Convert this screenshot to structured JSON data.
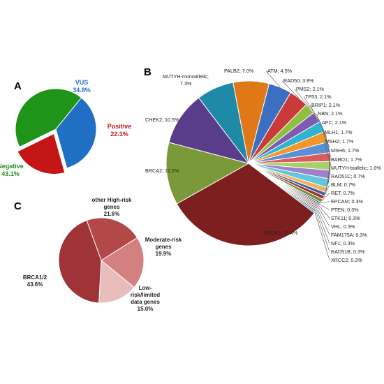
{
  "panel_letters": {
    "a": "A",
    "b": "B",
    "c": "C"
  },
  "chart_data": [
    {
      "id": "A",
      "type": "pie",
      "slices": [
        {
          "label": "VUS",
          "value_text": "34.8%",
          "value": 34.8,
          "color": "#1f6fc5"
        },
        {
          "label": "Positive",
          "value_text": "22.1%",
          "value": 22.1,
          "color": "#c41616",
          "exploded": true
        },
        {
          "label": "Negative",
          "value_text": "43.1%",
          "value": 43.1,
          "color": "#1e9418"
        }
      ]
    },
    {
      "id": "B",
      "type": "pie",
      "slices": [
        {
          "text": "BRCA1; 31.4%",
          "value": 31.4,
          "color": "#7d1f1e"
        },
        {
          "text": "BRCA2; 12.2%",
          "value": 12.2,
          "color": "#7a9a3a"
        },
        {
          "text": "CHEK2; 10.5%",
          "value": 10.5,
          "color": "#5a3d8a"
        },
        {
          "text": "MUTYH-monoallelic; 7.3%",
          "value": 7.3,
          "color": "#1f8aa8"
        },
        {
          "text": "PALB2; 7.0%",
          "value": 7.0,
          "color": "#e07817"
        },
        {
          "text": "ATM; 4.5%",
          "value": 4.5,
          "color": "#3a6fc2"
        },
        {
          "text": "RAD50; 3.8%",
          "value": 3.8,
          "color": "#c93b3b"
        },
        {
          "text": "PMS2; 2.1%",
          "value": 2.1,
          "color": "#8fbf3f"
        },
        {
          "text": "TP53; 2.1%",
          "value": 2.1,
          "color": "#7e5bb3"
        },
        {
          "text": "BRIP1; 2.1%",
          "value": 2.1,
          "color": "#2fb3cf"
        },
        {
          "text": "NBN; 2.1%",
          "value": 2.1,
          "color": "#f0962a"
        },
        {
          "text": "APC; 2.1%",
          "value": 2.1,
          "color": "#5b8fd6"
        },
        {
          "text": "MLH1; 1.7%",
          "value": 1.7,
          "color": "#d95c5c"
        },
        {
          "text": "MSH2; 1.7%",
          "value": 1.7,
          "color": "#a9cf6a"
        },
        {
          "text": "MSH6; 1.7%",
          "value": 1.7,
          "color": "#9c83c9"
        },
        {
          "text": "BARD1; 1.7%",
          "value": 1.7,
          "color": "#62c6dd"
        },
        {
          "text": "MUTYH-biallelic; 1.0%",
          "value": 1.0,
          "color": "#f3b15f"
        },
        {
          "text": "RAD51C; 0.7%",
          "value": 0.7,
          "color": "#3d5f9e"
        },
        {
          "text": "BLM; 0.7%",
          "value": 0.7,
          "color": "#9e3030"
        },
        {
          "text": "RET; 0.7%",
          "value": 0.7,
          "color": "#6f8f30"
        },
        {
          "text": "EPCAM; 0.3%",
          "value": 0.3,
          "color": "#4b3575"
        },
        {
          "text": "PTEN; 0.3%",
          "value": 0.3,
          "color": "#1d7690"
        },
        {
          "text": "STK11; 0.3%",
          "value": 0.3,
          "color": "#c06514"
        },
        {
          "text": "VHL; 0.3%",
          "value": 0.3,
          "color": "#5274b8"
        },
        {
          "text": "FAM175A; 0.3%",
          "value": 0.3,
          "color": "#b84b4b"
        },
        {
          "text": "NF1; 0.3%",
          "value": 0.3,
          "color": "#86a94a"
        },
        {
          "text": "RAD51B; 0.3%",
          "value": 0.3,
          "color": "#6b52a0"
        },
        {
          "text": "XRCC2; 0.3%",
          "value": 0.3,
          "color": "#2a9ab8"
        }
      ]
    },
    {
      "id": "C",
      "type": "pie",
      "slices": [
        {
          "lines": [
            "other High-risk",
            "genes",
            "21.6%"
          ],
          "value": 21.6,
          "color": "#b24848"
        },
        {
          "lines": [
            "Moderate-risk",
            "genes",
            "19.9%"
          ],
          "value": 19.9,
          "color": "#d48080"
        },
        {
          "lines": [
            "Low-",
            "risk/limited",
            "data genes",
            "15.0%"
          ],
          "value": 15.0,
          "color": "#e9bcbc"
        },
        {
          "lines": [
            "BRCA1/2",
            "43.6%"
          ],
          "value": 43.6,
          "color": "#9e3338"
        }
      ]
    }
  ]
}
